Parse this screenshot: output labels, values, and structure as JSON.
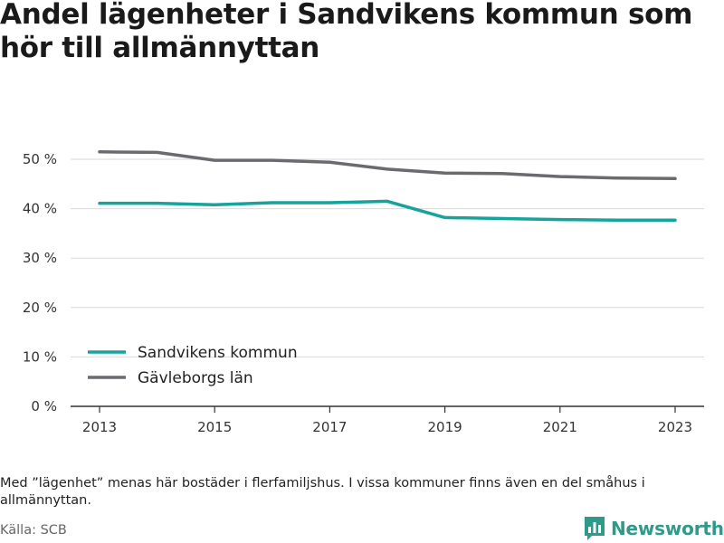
{
  "title": "Andel lägenheter i Sandvikens kommun som hör till allmännyttan",
  "note": "Med ”lägenhet” menas här bostäder i flerfamiljshus. I vissa kommuner finns även en del småhus i allmännyttan.",
  "source": "Källa: SCB",
  "brand": {
    "name": "Newsworthy",
    "color": "#2f9a8a",
    "icon": "bar-chart-logo-icon"
  },
  "chart_data": {
    "type": "line",
    "x": [
      2013,
      2014,
      2015,
      2016,
      2017,
      2018,
      2019,
      2020,
      2021,
      2022,
      2023
    ],
    "xticks": [
      2013,
      2015,
      2017,
      2019,
      2021,
      2023
    ],
    "xtick_labels": [
      "2013",
      "2015",
      "2017",
      "2019",
      "2021",
      "2023"
    ],
    "ylim": [
      0,
      50
    ],
    "yticks": [
      0,
      10,
      20,
      30,
      40,
      50
    ],
    "ytick_labels": [
      "0 %",
      "10 %",
      "20 %",
      "30 %",
      "40 %",
      "50 %"
    ],
    "grid": true,
    "legend": "lower-left",
    "series": [
      {
        "name": "Sandvikens kommun",
        "color": "#16a39b",
        "values": [
          41.1,
          41.1,
          40.8,
          41.2,
          41.2,
          41.5,
          38.2,
          38.0,
          37.8,
          37.7,
          37.7
        ]
      },
      {
        "name": "Gävleborgs län",
        "color": "#6b6b6f",
        "values": [
          51.5,
          51.4,
          49.8,
          49.8,
          49.4,
          48.0,
          47.2,
          47.1,
          46.5,
          46.2,
          46.1
        ]
      }
    ]
  }
}
